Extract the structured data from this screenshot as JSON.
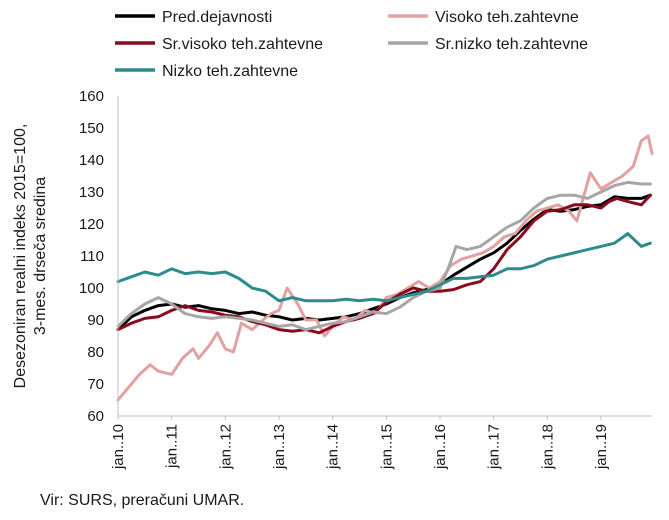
{
  "source": "Vir: SURS, preračuni UMAR.",
  "chart_data": {
    "type": "line",
    "ylabel_lines": [
      "Desezoniran realni indeks 2015=100,",
      "3-mes. drseča sredina"
    ],
    "ylim": [
      60,
      160
    ],
    "yticks": [
      60,
      70,
      80,
      90,
      100,
      110,
      120,
      130,
      140,
      150,
      160
    ],
    "xlim": [
      2010.0,
      2019.95
    ],
    "xticks": [
      {
        "x": 2010,
        "label": "jan..10"
      },
      {
        "x": 2011,
        "label": "jan..11"
      },
      {
        "x": 2012,
        "label": "jan..12"
      },
      {
        "x": 2013,
        "label": "jan..13"
      },
      {
        "x": 2014,
        "label": "jan..14"
      },
      {
        "x": 2015,
        "label": "jan..15"
      },
      {
        "x": 2016,
        "label": "jan..16"
      },
      {
        "x": 2017,
        "label": "jan..17"
      },
      {
        "x": 2018,
        "label": "jan..18"
      },
      {
        "x": 2019,
        "label": "jan..19"
      }
    ],
    "grid": false,
    "legend": "top",
    "series": [
      {
        "name": "Pred.dejavnosti",
        "color": "#000000",
        "points": [
          [
            2010,
            87
          ],
          [
            2010.25,
            91
          ],
          [
            2010.5,
            93
          ],
          [
            2010.75,
            94.5
          ],
          [
            2011,
            95
          ],
          [
            2011.25,
            94
          ],
          [
            2011.5,
            94.5
          ],
          [
            2011.75,
            93.5
          ],
          [
            2012,
            93
          ],
          [
            2012.25,
            92
          ],
          [
            2012.5,
            92.5
          ],
          [
            2012.75,
            91.5
          ],
          [
            2013,
            91
          ],
          [
            2013.25,
            90
          ],
          [
            2013.5,
            90.5
          ],
          [
            2013.75,
            90
          ],
          [
            2014,
            90.5
          ],
          [
            2014.25,
            91
          ],
          [
            2014.5,
            92
          ],
          [
            2014.75,
            93.5
          ],
          [
            2015,
            95
          ],
          [
            2015.25,
            97
          ],
          [
            2015.5,
            98.5
          ],
          [
            2015.75,
            99.5
          ],
          [
            2016,
            101
          ],
          [
            2016.25,
            104
          ],
          [
            2016.5,
            106.5
          ],
          [
            2016.75,
            109
          ],
          [
            2017,
            111
          ],
          [
            2017.25,
            114
          ],
          [
            2017.5,
            118
          ],
          [
            2017.75,
            121.5
          ],
          [
            2018,
            124.5
          ],
          [
            2018.25,
            124
          ],
          [
            2018.5,
            124.5
          ],
          [
            2018.75,
            125.5
          ],
          [
            2019,
            126
          ],
          [
            2019.25,
            128.5
          ],
          [
            2019.5,
            128
          ],
          [
            2019.75,
            128
          ],
          [
            2019.92,
            129
          ]
        ]
      },
      {
        "name": "Visoko teh.zahtevne",
        "color": "#e4a0a0",
        "points": [
          [
            2010,
            65
          ],
          [
            2010.2,
            69
          ],
          [
            2010.4,
            73
          ],
          [
            2010.6,
            76
          ],
          [
            2010.75,
            74
          ],
          [
            2011,
            73
          ],
          [
            2011.2,
            78
          ],
          [
            2011.4,
            81
          ],
          [
            2011.5,
            78
          ],
          [
            2011.7,
            82
          ],
          [
            2011.85,
            86
          ],
          [
            2012,
            81
          ],
          [
            2012.15,
            80
          ],
          [
            2012.3,
            89
          ],
          [
            2012.5,
            87
          ],
          [
            2012.7,
            90
          ],
          [
            2012.85,
            92
          ],
          [
            2013,
            93
          ],
          [
            2013.15,
            100
          ],
          [
            2013.35,
            95
          ],
          [
            2013.5,
            90
          ],
          [
            2013.7,
            90
          ],
          [
            2013.85,
            85
          ],
          [
            2014,
            88
          ],
          [
            2014.2,
            91
          ],
          [
            2014.4,
            90
          ],
          [
            2014.6,
            93
          ],
          [
            2014.8,
            92
          ],
          [
            2015,
            97
          ],
          [
            2015.2,
            98
          ],
          [
            2015.4,
            100
          ],
          [
            2015.6,
            102
          ],
          [
            2015.8,
            100
          ],
          [
            2016,
            102
          ],
          [
            2016.2,
            107
          ],
          [
            2016.4,
            109
          ],
          [
            2016.6,
            110
          ],
          [
            2016.8,
            111
          ],
          [
            2017,
            113
          ],
          [
            2017.2,
            116
          ],
          [
            2017.4,
            117
          ],
          [
            2017.6,
            121
          ],
          [
            2017.8,
            124
          ],
          [
            2018,
            125
          ],
          [
            2018.2,
            126
          ],
          [
            2018.4,
            124
          ],
          [
            2018.55,
            121
          ],
          [
            2018.7,
            130
          ],
          [
            2018.8,
            136
          ],
          [
            2019,
            131
          ],
          [
            2019.2,
            133
          ],
          [
            2019.4,
            135
          ],
          [
            2019.6,
            138
          ],
          [
            2019.75,
            146
          ],
          [
            2019.88,
            147.5
          ],
          [
            2019.95,
            142
          ]
        ]
      },
      {
        "name": "Sr.visoko teh.zahtevne",
        "color": "#8b0a1e",
        "points": [
          [
            2010,
            87
          ],
          [
            2010.25,
            89
          ],
          [
            2010.5,
            90.5
          ],
          [
            2010.75,
            91
          ],
          [
            2011,
            93
          ],
          [
            2011.25,
            94.5
          ],
          [
            2011.5,
            93
          ],
          [
            2011.75,
            92.5
          ],
          [
            2012,
            91.5
          ],
          [
            2012.25,
            91
          ],
          [
            2012.5,
            89.5
          ],
          [
            2012.75,
            88.5
          ],
          [
            2013,
            87
          ],
          [
            2013.25,
            86.5
          ],
          [
            2013.5,
            87
          ],
          [
            2013.75,
            86
          ],
          [
            2014,
            88
          ],
          [
            2014.25,
            89.5
          ],
          [
            2014.5,
            90.5
          ],
          [
            2014.75,
            92
          ],
          [
            2015,
            95.5
          ],
          [
            2015.25,
            98
          ],
          [
            2015.5,
            100
          ],
          [
            2015.75,
            99
          ],
          [
            2016,
            99
          ],
          [
            2016.25,
            99.5
          ],
          [
            2016.5,
            101
          ],
          [
            2016.75,
            102
          ],
          [
            2017,
            106
          ],
          [
            2017.25,
            112
          ],
          [
            2017.5,
            116
          ],
          [
            2017.75,
            121
          ],
          [
            2018,
            124
          ],
          [
            2018.25,
            124.5
          ],
          [
            2018.5,
            126
          ],
          [
            2018.75,
            126
          ],
          [
            2019,
            125
          ],
          [
            2019.15,
            127
          ],
          [
            2019.3,
            128
          ],
          [
            2019.5,
            127
          ],
          [
            2019.75,
            126
          ],
          [
            2019.92,
            129
          ]
        ]
      },
      {
        "name": "Sr.nizko teh.zahtevne",
        "color": "#a6a6a6",
        "points": [
          [
            2010,
            88
          ],
          [
            2010.25,
            92
          ],
          [
            2010.5,
            95
          ],
          [
            2010.75,
            97
          ],
          [
            2011,
            95
          ],
          [
            2011.25,
            92
          ],
          [
            2011.5,
            91
          ],
          [
            2011.75,
            90.5
          ],
          [
            2012,
            91
          ],
          [
            2012.25,
            90.5
          ],
          [
            2012.5,
            90
          ],
          [
            2012.75,
            89
          ],
          [
            2013,
            88
          ],
          [
            2013.25,
            88.5
          ],
          [
            2013.5,
            87
          ],
          [
            2013.75,
            88
          ],
          [
            2014,
            89
          ],
          [
            2014.25,
            89.5
          ],
          [
            2014.5,
            91
          ],
          [
            2014.75,
            92.5
          ],
          [
            2015,
            92
          ],
          [
            2015.25,
            94
          ],
          [
            2015.5,
            97
          ],
          [
            2015.75,
            99
          ],
          [
            2016,
            100
          ],
          [
            2016.15,
            106
          ],
          [
            2016.3,
            113
          ],
          [
            2016.5,
            112
          ],
          [
            2016.75,
            113
          ],
          [
            2017,
            116
          ],
          [
            2017.25,
            119
          ],
          [
            2017.5,
            121
          ],
          [
            2017.75,
            125
          ],
          [
            2018,
            128
          ],
          [
            2018.25,
            129
          ],
          [
            2018.5,
            129
          ],
          [
            2018.75,
            128
          ],
          [
            2019,
            130
          ],
          [
            2019.25,
            132
          ],
          [
            2019.5,
            133
          ],
          [
            2019.75,
            132.5
          ],
          [
            2019.92,
            132.5
          ]
        ]
      },
      {
        "name": "Nizko teh.zahtevne",
        "color": "#2e8b8b",
        "points": [
          [
            2010,
            102
          ],
          [
            2010.25,
            103.5
          ],
          [
            2010.5,
            105
          ],
          [
            2010.75,
            104
          ],
          [
            2011,
            106
          ],
          [
            2011.25,
            104.5
          ],
          [
            2011.5,
            105
          ],
          [
            2011.75,
            104.5
          ],
          [
            2012,
            105
          ],
          [
            2012.25,
            103
          ],
          [
            2012.5,
            100
          ],
          [
            2012.75,
            99
          ],
          [
            2013,
            96
          ],
          [
            2013.25,
            97
          ],
          [
            2013.5,
            96
          ],
          [
            2013.75,
            96
          ],
          [
            2014,
            96
          ],
          [
            2014.25,
            96.5
          ],
          [
            2014.5,
            96
          ],
          [
            2014.75,
            96.5
          ],
          [
            2015,
            96
          ],
          [
            2015.25,
            97
          ],
          [
            2015.5,
            98
          ],
          [
            2015.75,
            99
          ],
          [
            2016,
            101
          ],
          [
            2016.25,
            103
          ],
          [
            2016.5,
            103
          ],
          [
            2016.75,
            103.5
          ],
          [
            2017,
            104
          ],
          [
            2017.25,
            106
          ],
          [
            2017.5,
            106
          ],
          [
            2017.75,
            107
          ],
          [
            2018,
            109
          ],
          [
            2018.25,
            110
          ],
          [
            2018.5,
            111
          ],
          [
            2018.75,
            112
          ],
          [
            2019,
            113
          ],
          [
            2019.25,
            114
          ],
          [
            2019.5,
            117
          ],
          [
            2019.75,
            113
          ],
          [
            2019.92,
            114
          ]
        ]
      }
    ]
  }
}
